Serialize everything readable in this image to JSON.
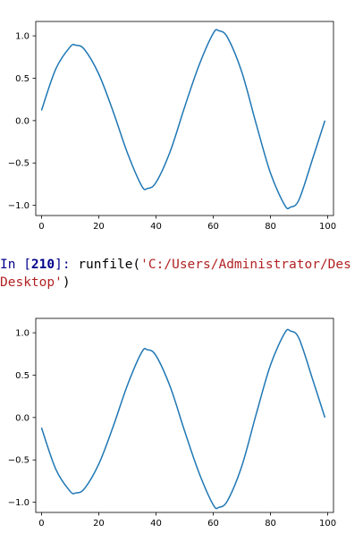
{
  "chart_data": [
    {
      "type": "line",
      "title": "",
      "xlabel": "",
      "ylabel": "",
      "xlim": [
        -2,
        102
      ],
      "ylim": [
        -1.12,
        1.17
      ],
      "x_ticks": [
        0,
        20,
        40,
        60,
        80,
        100
      ],
      "y_ticks": [
        -1.0,
        -0.5,
        0.0,
        0.5,
        1.0
      ],
      "x_tick_labels": [
        "0",
        "20",
        "40",
        "60",
        "80",
        "100"
      ],
      "y_tick_labels": [
        "−1.0",
        "−0.5",
        "0.0",
        "0.5",
        "1.0"
      ],
      "series": [
        {
          "color": "#1f77b4",
          "x": [
            0,
            5,
            10,
            12,
            15,
            20,
            25,
            30,
            35,
            37,
            40,
            45,
            50,
            55,
            60,
            62,
            65,
            70,
            75,
            80,
            85,
            87,
            90,
            95,
            99
          ],
          "y": [
            0.12,
            0.61,
            0.87,
            0.89,
            0.84,
            0.55,
            0.11,
            -0.38,
            -0.77,
            -0.8,
            -0.73,
            -0.36,
            0.16,
            0.65,
            1.03,
            1.06,
            0.98,
            0.57,
            -0.04,
            -0.62,
            -1.0,
            -1.02,
            -0.93,
            -0.42,
            0.0
          ]
        }
      ],
      "grid": false,
      "legend": "none"
    },
    {
      "type": "line",
      "title": "",
      "xlabel": "",
      "ylabel": "",
      "xlim": [
        -2,
        102
      ],
      "ylim": [
        -1.12,
        1.17
      ],
      "x_ticks": [
        0,
        20,
        40,
        60,
        80,
        100
      ],
      "y_ticks": [
        -1.0,
        -0.5,
        0.0,
        0.5,
        1.0
      ],
      "x_tick_labels": [
        "0",
        "20",
        "40",
        "60",
        "80",
        "100"
      ],
      "y_tick_labels": [
        "−1.0",
        "−0.5",
        "0.0",
        "0.5",
        "1.0"
      ],
      "series": [
        {
          "color": "#1f77b4",
          "x": [
            0,
            5,
            10,
            12,
            15,
            20,
            25,
            30,
            35,
            37,
            40,
            45,
            50,
            55,
            60,
            62,
            65,
            70,
            75,
            80,
            85,
            87,
            90,
            95,
            99
          ],
          "y": [
            -0.12,
            -0.61,
            -0.87,
            -0.89,
            -0.84,
            -0.55,
            -0.11,
            0.38,
            0.77,
            0.8,
            0.73,
            0.36,
            -0.16,
            -0.65,
            -1.03,
            -1.06,
            -0.98,
            -0.57,
            0.04,
            0.62,
            1.0,
            1.02,
            0.93,
            0.42,
            0.0
          ]
        }
      ],
      "grid": false,
      "legend": "none"
    }
  ],
  "console": {
    "prompt_word": "In [",
    "prompt_number": "210",
    "prompt_close": "]: ",
    "command": "runfile(",
    "argument": "'C:/Users/Administrator/Des",
    "argument_continued": "Desktop'",
    "command_close": ")"
  }
}
